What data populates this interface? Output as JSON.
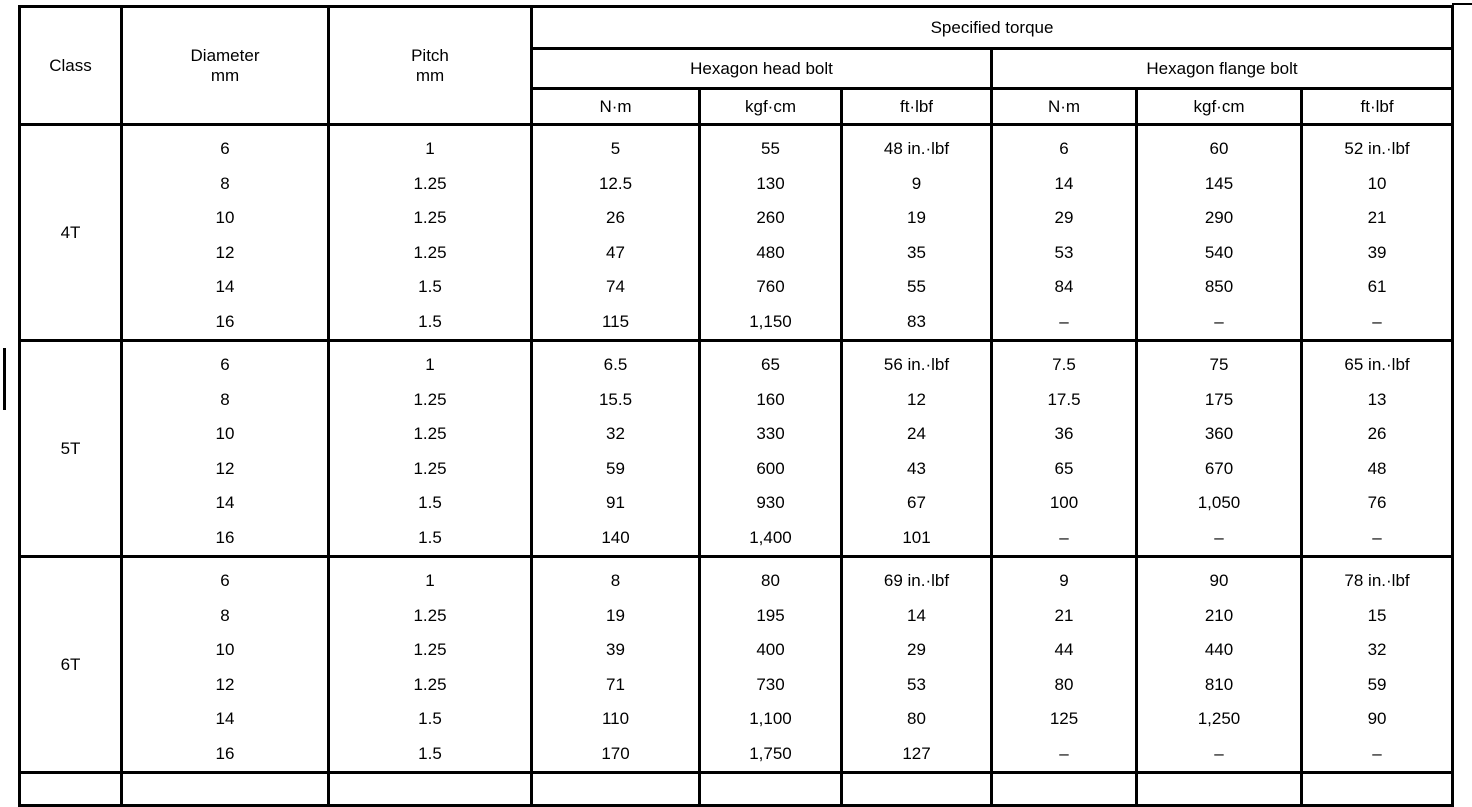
{
  "headers": {
    "class": "Class",
    "diameter": "Diameter",
    "diameter_unit": "mm",
    "pitch": "Pitch",
    "pitch_unit": "mm",
    "specified_torque": "Specified torque",
    "hex_head": "Hexagon head bolt",
    "hex_flange": "Hexagon flange bolt",
    "units": [
      "N·m",
      "kgf·cm",
      "ft·lbf",
      "N·m",
      "kgf·cm",
      "ft·lbf"
    ]
  },
  "groups": [
    {
      "class": "4T",
      "diameter": [
        "6",
        "8",
        "10",
        "12",
        "14",
        "16"
      ],
      "pitch": [
        "1",
        "1.25",
        "1.25",
        "1.25",
        "1.5",
        "1.5"
      ],
      "head_nm": [
        "5",
        "12.5",
        "26",
        "47",
        "74",
        "115"
      ],
      "head_kgf": [
        "55",
        "130",
        "260",
        "480",
        "760",
        "1,150"
      ],
      "head_ft": [
        "48 in.·lbf",
        "9",
        "19",
        "35",
        "55",
        "83"
      ],
      "flange_nm": [
        "6",
        "14",
        "29",
        "53",
        "84",
        "–"
      ],
      "flange_kgf": [
        "60",
        "145",
        "290",
        "540",
        "850",
        "–"
      ],
      "flange_ft": [
        "52 in.·lbf",
        "10",
        "21",
        "39",
        "61",
        "–"
      ]
    },
    {
      "class": "5T",
      "diameter": [
        "6",
        "8",
        "10",
        "12",
        "14",
        "16"
      ],
      "pitch": [
        "1",
        "1.25",
        "1.25",
        "1.25",
        "1.5",
        "1.5"
      ],
      "head_nm": [
        "6.5",
        "15.5",
        "32",
        "59",
        "91",
        "140"
      ],
      "head_kgf": [
        "65",
        "160",
        "330",
        "600",
        "930",
        "1,400"
      ],
      "head_ft": [
        "56 in.·lbf",
        "12",
        "24",
        "43",
        "67",
        "101"
      ],
      "flange_nm": [
        "7.5",
        "17.5",
        "36",
        "65",
        "100",
        "–"
      ],
      "flange_kgf": [
        "75",
        "175",
        "360",
        "670",
        "1,050",
        "–"
      ],
      "flange_ft": [
        "65 in.·lbf",
        "13",
        "26",
        "48",
        "76",
        "–"
      ]
    },
    {
      "class": "6T",
      "diameter": [
        "6",
        "8",
        "10",
        "12",
        "14",
        "16"
      ],
      "pitch": [
        "1",
        "1.25",
        "1.25",
        "1.25",
        "1.5",
        "1.5"
      ],
      "head_nm": [
        "8",
        "19",
        "39",
        "71",
        "110",
        "170"
      ],
      "head_kgf": [
        "80",
        "195",
        "400",
        "730",
        "1,100",
        "1,750"
      ],
      "head_ft": [
        "69 in.·lbf",
        "14",
        "29",
        "53",
        "80",
        "127"
      ],
      "flange_nm": [
        "9",
        "21",
        "44",
        "80",
        "125",
        "–"
      ],
      "flange_kgf": [
        "90",
        "210",
        "440",
        "810",
        "1,250",
        "–"
      ],
      "flange_ft": [
        "78 in.·lbf",
        "15",
        "32",
        "59",
        "90",
        "–"
      ]
    }
  ]
}
